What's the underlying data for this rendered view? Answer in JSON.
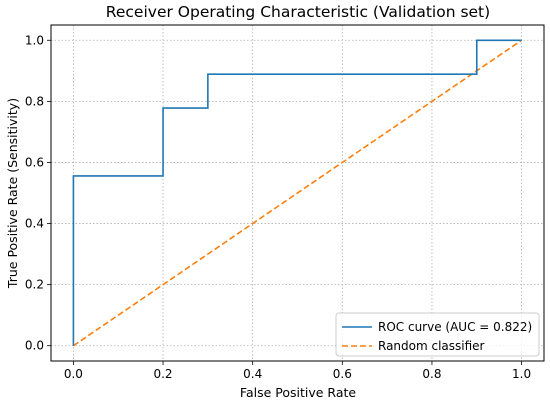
{
  "chart_data": {
    "type": "line",
    "title": "Receiver Operating Characteristic (Validation set)",
    "xlabel": "False Positive Rate",
    "ylabel": "True Positive Rate (Sensitivity)",
    "xlim": [
      -0.05,
      1.05
    ],
    "ylim": [
      -0.05,
      1.05
    ],
    "grid": true,
    "legend_position": "lower-right",
    "x_ticks": [
      "0.0",
      "0.2",
      "0.4",
      "0.6",
      "0.8",
      "1.0"
    ],
    "y_ticks": [
      "0.0",
      "0.2",
      "0.4",
      "0.6",
      "0.8",
      "1.0"
    ],
    "series": [
      {
        "name": "ROC curve (AUC = 0.822)",
        "color": "#1f77b4",
        "style": "solid",
        "x": [
          0.0,
          0.0,
          0.2,
          0.2,
          0.3,
          0.3,
          0.9,
          0.9,
          1.0
        ],
        "y": [
          0.0,
          0.556,
          0.556,
          0.778,
          0.778,
          0.889,
          0.889,
          1.0,
          1.0
        ]
      },
      {
        "name": "Random classifier",
        "color": "#ff7f0e",
        "style": "dashed",
        "x": [
          0.0,
          1.0
        ],
        "y": [
          0.0,
          1.0
        ]
      }
    ]
  }
}
